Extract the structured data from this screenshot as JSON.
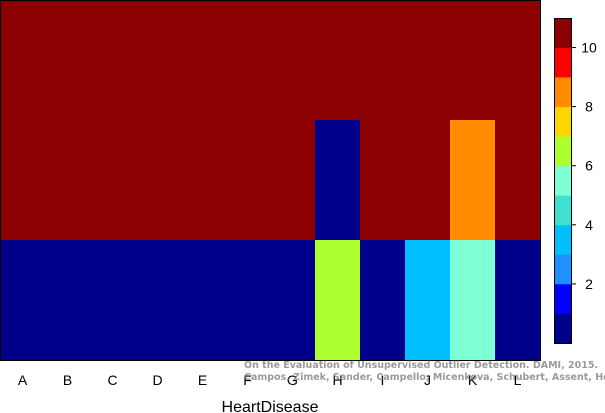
{
  "chart_data": {
    "type": "heatmap",
    "xlabel": "HeartDisease",
    "categories": [
      "A",
      "B",
      "C",
      "D",
      "E",
      "F",
      "G",
      "H",
      "I",
      "J",
      "K",
      "L"
    ],
    "rows": [
      {
        "values": [
          10.5,
          10.5,
          10.5,
          10.5,
          10.5,
          10.5,
          10.5,
          10.5,
          10.5,
          10.5,
          10.5,
          10.5
        ]
      },
      {
        "values": [
          10.5,
          10.5,
          10.5,
          10.5,
          10.5,
          10.5,
          10.5,
          0.5,
          10.5,
          10.5,
          8.5,
          10.5
        ]
      },
      {
        "values": [
          0.5,
          0.5,
          0.5,
          0.5,
          0.5,
          0.5,
          0.5,
          6.5,
          0.5,
          3.5,
          5.5,
          0.5
        ]
      }
    ],
    "colorbar": {
      "range": [
        0,
        11
      ],
      "ticks": [
        2,
        4,
        6,
        8,
        10
      ],
      "colors": [
        "#00008B",
        "#0000FF",
        "#1E90FF",
        "#00BFFF",
        "#40E0D0",
        "#7FFFD4",
        "#ADFF2F",
        "#FFD700",
        "#FF8C00",
        "#FF0000",
        "#8B0000"
      ]
    }
  },
  "watermark": {
    "line1": "On the Evaluation of Unsupervised Outlier Detection. DAMI, 2015.",
    "line2": "Campos, Zimek, Sander, Campello, Micenkova, Schubert, Assent, Houle"
  }
}
